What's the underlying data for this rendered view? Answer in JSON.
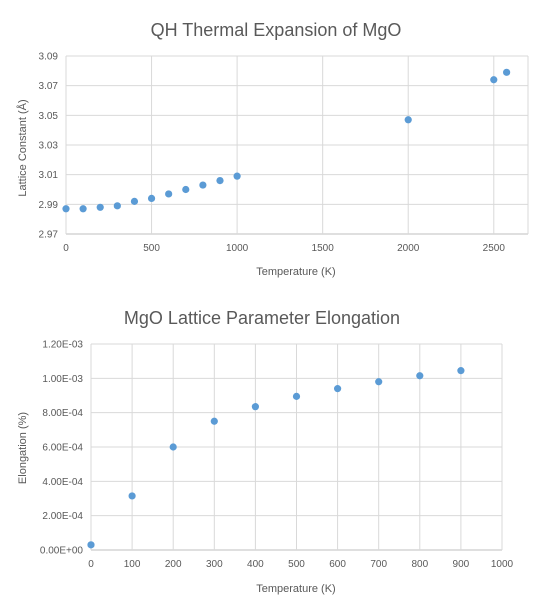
{
  "chart_data": [
    {
      "type": "scatter",
      "title": "QH Thermal Expansion of MgO",
      "xlabel": "Temperature  (K)",
      "ylabel": "Lattice  Constant (Å)",
      "xlim": [
        0,
        2700
      ],
      "ylim": [
        2.97,
        3.09
      ],
      "xticks": [
        0,
        500,
        1000,
        1500,
        2000,
        2500
      ],
      "xtick_labels": [
        "0",
        "500",
        "1000",
        "1500",
        "2000",
        "2500"
      ],
      "yticks": [
        2.97,
        2.99,
        3.01,
        3.03,
        3.05,
        3.07,
        3.09
      ],
      "ytick_labels": [
        "2.97",
        "2.99",
        "3.01",
        "3.03",
        "3.05",
        "3.07",
        "3.09"
      ],
      "grid": true,
      "color": "#5b9bd5",
      "x": [
        0,
        100,
        200,
        300,
        400,
        500,
        600,
        700,
        800,
        900,
        1000,
        2000,
        2500,
        2575
      ],
      "y": [
        2.987,
        2.987,
        2.988,
        2.989,
        2.992,
        2.994,
        2.997,
        3.0,
        3.003,
        3.006,
        3.009,
        3.047,
        3.074,
        3.079
      ]
    },
    {
      "type": "scatter",
      "title": "MgO Lattice Parameter Elongation",
      "xlabel": "Temperature  (K)",
      "ylabel": "Elongation (%)",
      "xlim": [
        0,
        1000
      ],
      "ylim": [
        0,
        0.0012
      ],
      "xticks": [
        0,
        100,
        200,
        300,
        400,
        500,
        600,
        700,
        800,
        900,
        1000
      ],
      "xtick_labels": [
        "0",
        "100",
        "200",
        "300",
        "400",
        "500",
        "600",
        "700",
        "800",
        "900",
        "1000"
      ],
      "yticks": [
        0,
        0.0002,
        0.0004,
        0.0006,
        0.0008,
        0.001,
        0.0012
      ],
      "ytick_labels": [
        "0.00E+00",
        "2.00E-04",
        "4.00E-04",
        "6.00E-04",
        "8.00E-04",
        "1.00E-03",
        "1.20E-03"
      ],
      "grid": true,
      "color": "#5b9bd5",
      "x": [
        0,
        100,
        200,
        300,
        400,
        500,
        600,
        700,
        800,
        900
      ],
      "y": [
        3e-05,
        0.000315,
        0.0006,
        0.00075,
        0.000835,
        0.000895,
        0.00094,
        0.00098,
        0.001015,
        0.001045
      ]
    }
  ]
}
